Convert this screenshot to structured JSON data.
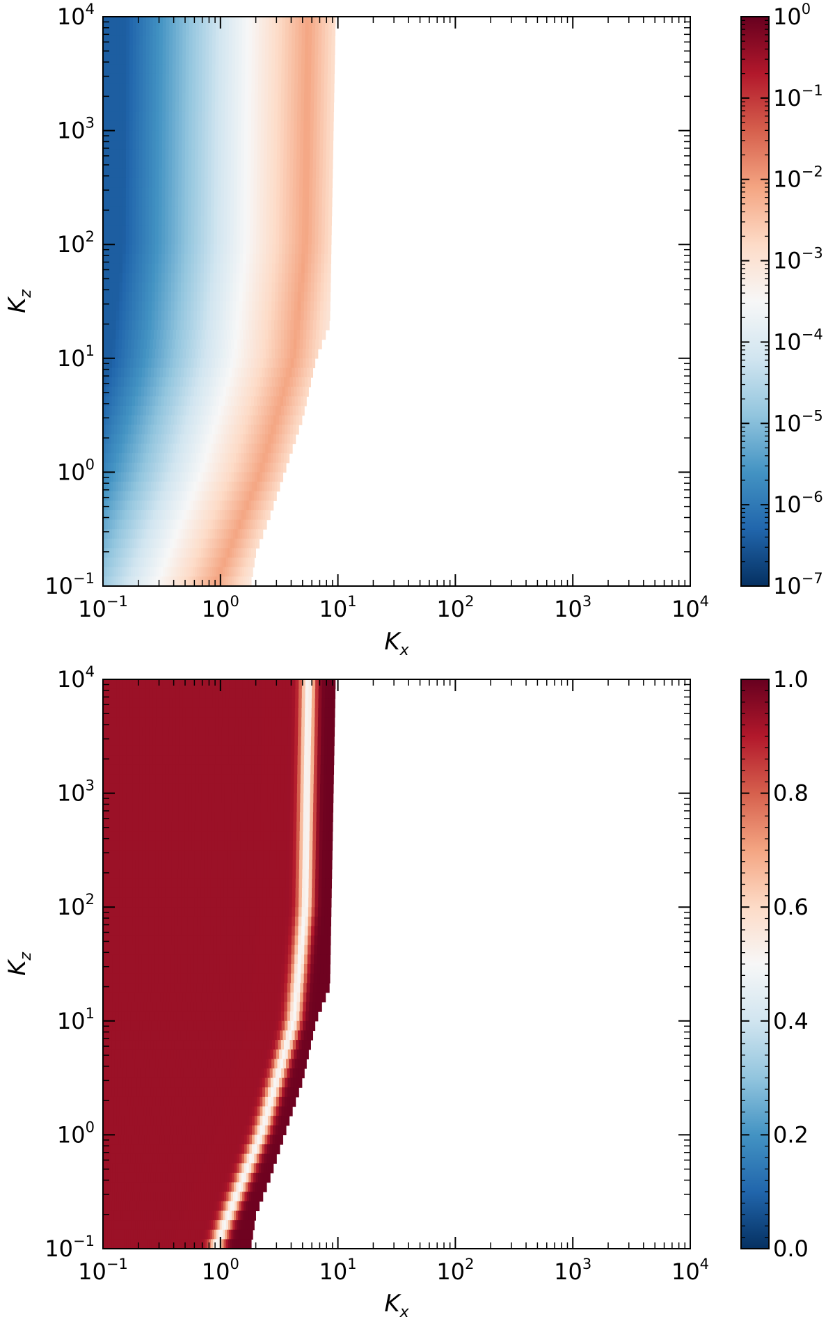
{
  "chart_data": [
    {
      "type": "heatmap",
      "title": "",
      "xlabel": "K",
      "xlabel_subscript": "x",
      "ylabel": "K",
      "ylabel_subscript": "z",
      "xscale": "log",
      "yscale": "log",
      "xlim": [
        0.1,
        10000
      ],
      "ylim": [
        0.1,
        10000
      ],
      "x_ticks": [
        {
          "value": 0.1,
          "base": "10",
          "exp": "−1"
        },
        {
          "value": 1,
          "base": "10",
          "exp": "0"
        },
        {
          "value": 10,
          "base": "10",
          "exp": "1"
        },
        {
          "value": 100,
          "base": "10",
          "exp": "2"
        },
        {
          "value": 1000,
          "base": "10",
          "exp": "3"
        },
        {
          "value": 10000,
          "base": "10",
          "exp": "4"
        }
      ],
      "y_ticks": [
        {
          "value": 0.1,
          "base": "10",
          "exp": "−1"
        },
        {
          "value": 1,
          "base": "10",
          "exp": "0"
        },
        {
          "value": 10,
          "base": "10",
          "exp": "1"
        },
        {
          "value": 100,
          "base": "10",
          "exp": "2"
        },
        {
          "value": 1000,
          "base": "10",
          "exp": "3"
        },
        {
          "value": 10000,
          "base": "10",
          "exp": "4"
        }
      ],
      "colormap": "RdBu_r",
      "colorbar": {
        "scale": "log",
        "range": [
          1e-07,
          1
        ],
        "ticks": [
          {
            "value": 1,
            "base": "10",
            "exp": "0"
          },
          {
            "value": 0.1,
            "base": "10",
            "exp": "−1"
          },
          {
            "value": 0.01,
            "base": "10",
            "exp": "−2"
          },
          {
            "value": 0.001,
            "base": "10",
            "exp": "−3"
          },
          {
            "value": 0.0001,
            "base": "10",
            "exp": "−4"
          },
          {
            "value": 1e-05,
            "base": "10",
            "exp": "−5"
          },
          {
            "value": 1e-06,
            "base": "10",
            "exp": "−6"
          },
          {
            "value": 1e-07,
            "base": "10",
            "exp": "−7"
          }
        ]
      },
      "data_domain_max_kx": [
        [
          0.1,
          1.8
        ],
        [
          0.2,
          2.0
        ],
        [
          0.4,
          2.6
        ],
        [
          1,
          3.5
        ],
        [
          3,
          5
        ],
        [
          10,
          6.5
        ],
        [
          20,
          8.5
        ],
        [
          10000,
          9.5
        ]
      ],
      "value_profile": {
        "ridge_kx_at_kz": [
          [
            0.1,
            0.9
          ],
          [
            1,
            2.2
          ],
          [
            10,
            4.2
          ],
          [
            100,
            5.3
          ],
          [
            10000,
            5.6
          ]
        ],
        "level_far_left_log10": -6.4,
        "level_ridge_log10": -2.1
      }
    },
    {
      "type": "heatmap",
      "title": "",
      "xlabel": "K",
      "xlabel_subscript": "x",
      "ylabel": "K",
      "ylabel_subscript": "z",
      "xscale": "log",
      "yscale": "log",
      "xlim": [
        0.1,
        10000
      ],
      "ylim": [
        0.1,
        10000
      ],
      "x_ticks": [
        {
          "value": 0.1,
          "base": "10",
          "exp": "−1"
        },
        {
          "value": 1,
          "base": "10",
          "exp": "0"
        },
        {
          "value": 10,
          "base": "10",
          "exp": "1"
        },
        {
          "value": 100,
          "base": "10",
          "exp": "2"
        },
        {
          "value": 1000,
          "base": "10",
          "exp": "3"
        },
        {
          "value": 10000,
          "base": "10",
          "exp": "4"
        }
      ],
      "y_ticks": [
        {
          "value": 0.1,
          "base": "10",
          "exp": "−1"
        },
        {
          "value": 1,
          "base": "10",
          "exp": "0"
        },
        {
          "value": 10,
          "base": "10",
          "exp": "1"
        },
        {
          "value": 100,
          "base": "10",
          "exp": "2"
        },
        {
          "value": 1000,
          "base": "10",
          "exp": "3"
        },
        {
          "value": 10000,
          "base": "10",
          "exp": "4"
        }
      ],
      "colormap": "RdBu_r",
      "colorbar": {
        "scale": "linear",
        "range": [
          0,
          1
        ],
        "ticks": [
          {
            "value": 1.0,
            "label": "1.0"
          },
          {
            "value": 0.8,
            "label": "0.8"
          },
          {
            "value": 0.6,
            "label": "0.6"
          },
          {
            "value": 0.4,
            "label": "0.4"
          },
          {
            "value": 0.2,
            "label": "0.2"
          },
          {
            "value": 0.0,
            "label": "0.0"
          }
        ]
      },
      "data_domain_max_kx": [
        [
          0.1,
          1.8
        ],
        [
          0.2,
          2.0
        ],
        [
          0.4,
          2.6
        ],
        [
          1,
          3.5
        ],
        [
          3,
          5
        ],
        [
          10,
          6.5
        ],
        [
          20,
          8.5
        ],
        [
          10000,
          9.5
        ]
      ],
      "value_profile": {
        "ridge_kx_at_kz": [
          [
            0.1,
            0.9
          ],
          [
            1,
            2.2
          ],
          [
            10,
            4.2
          ],
          [
            100,
            5.3
          ],
          [
            10000,
            5.6
          ]
        ],
        "level_left": 0.93,
        "level_ridge": 0.5,
        "level_right": 0.99
      }
    }
  ]
}
